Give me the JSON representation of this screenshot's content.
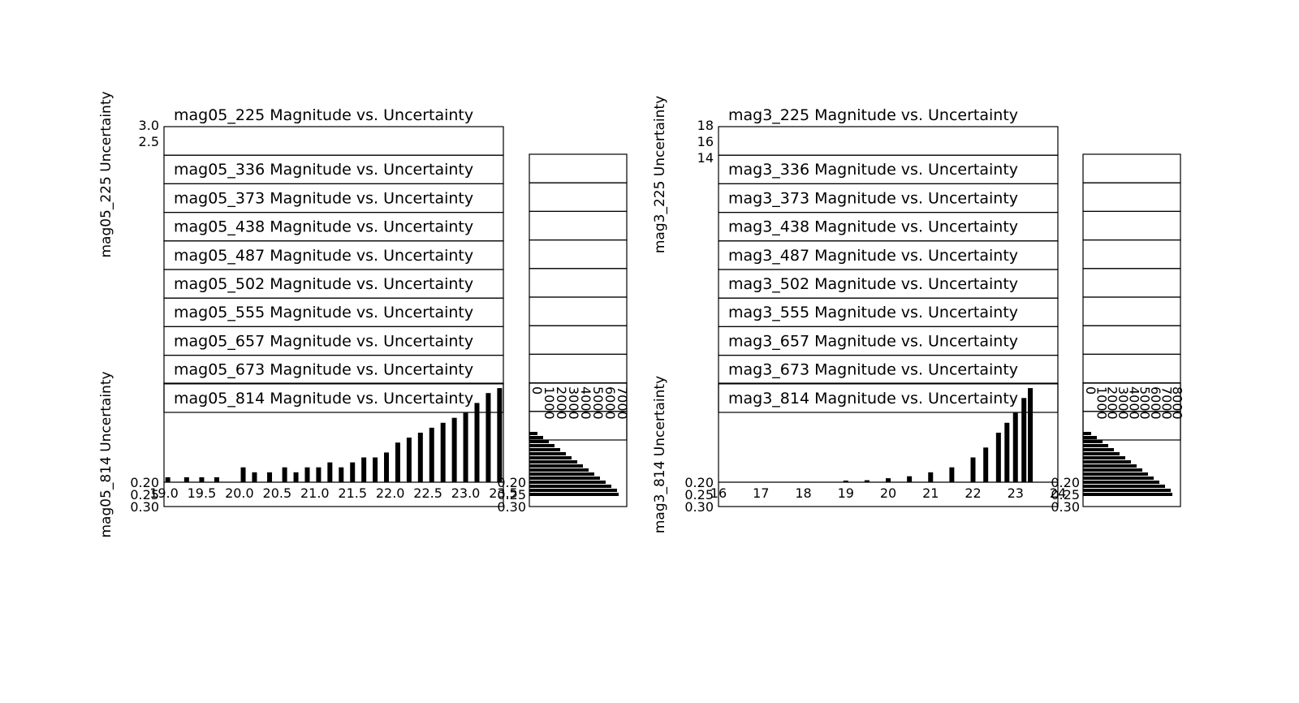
{
  "figure": {
    "left_block": {
      "title_series": [
        "mag05_225 Magnitude vs. Uncertainty",
        "mag05_336 Magnitude vs. Uncertainty",
        "mag05_373 Magnitude vs. Uncertainty",
        "mag05_438 Magnitude vs. Uncertainty",
        "mag05_487 Magnitude vs. Uncertainty",
        "mag05_502 Magnitude vs. Uncertainty",
        "mag05_555 Magnitude vs. Uncertainty",
        "mag05_657 Magnitude vs. Uncertainty",
        "mag05_673 Magnitude vs. Uncertainty",
        "mag05_814 Magnitude vs. Uncertainty"
      ],
      "ylabel_main": "mag05_814 Uncertainty",
      "ylabel_top": "mag05_225 Uncertainty",
      "xtick_labels": [
        "19.0",
        "19.5",
        "20.0",
        "20.5",
        "21.0",
        "21.5",
        "22.0",
        "22.5",
        "23.0",
        "23.5"
      ],
      "ytick_labels_bottom": [
        "0.20",
        "0.25",
        "0.30"
      ],
      "ytick_labels_top": [
        "3.0",
        "2.5"
      ],
      "hist_xtick_labels": [
        "0",
        "1000",
        "2000",
        "3000",
        "4000",
        "5000",
        "6000",
        "7000"
      ],
      "hist_ytick_labels": [
        "0.20",
        "0.25",
        "0.30"
      ]
    },
    "right_block": {
      "title_series": [
        "mag3_225 Magnitude vs. Uncertainty",
        "mag3_336 Magnitude vs. Uncertainty",
        "mag3_373 Magnitude vs. Uncertainty",
        "mag3_438 Magnitude vs. Uncertainty",
        "mag3_487 Magnitude vs. Uncertainty",
        "mag3_502 Magnitude vs. Uncertainty",
        "mag3_555 Magnitude vs. Uncertainty",
        "mag3_657 Magnitude vs. Uncertainty",
        "mag3_673 Magnitude vs. Uncertainty",
        "mag3_814 Magnitude vs. Uncertainty"
      ],
      "ylabel_main": "mag3_814 Uncertainty",
      "ylabel_top": "mag3_225 Uncertainty",
      "xtick_labels": [
        "16",
        "17",
        "18",
        "19",
        "20",
        "21",
        "22",
        "23",
        "24"
      ],
      "ytick_labels_bottom": [
        "0.20",
        "0.25",
        "0.30"
      ],
      "ytick_labels_top": [
        "18",
        "16",
        "14"
      ],
      "hist_xtick_labels": [
        "0",
        "1000",
        "2000",
        "3000",
        "4000",
        "5000",
        "6000",
        "7000",
        "8000"
      ],
      "hist_ytick_labels": [
        "0.20",
        "0.25",
        "0.30"
      ]
    }
  },
  "chart_data": [
    {
      "type": "bar",
      "title": "mag05_814 Magnitude vs. Uncertainty",
      "xlabel": "",
      "ylabel": "mag05_814 Uncertainty",
      "xlim": [
        19.0,
        23.5
      ],
      "ylim": [
        0.3,
        0.2
      ],
      "grid": false,
      "series": [
        {
          "x": [
            19.05,
            19.3,
            19.5,
            19.7,
            20.05,
            20.2,
            20.4,
            20.6,
            20.75,
            20.9,
            21.05,
            21.2,
            21.35,
            21.5,
            21.65,
            21.8,
            21.95,
            22.1,
            22.25,
            22.4,
            22.55,
            22.7,
            22.85,
            23.0,
            23.15,
            23.3,
            23.45
          ],
          "y": [
            0.205,
            0.205,
            0.205,
            0.205,
            0.215,
            0.21,
            0.21,
            0.215,
            0.21,
            0.215,
            0.215,
            0.22,
            0.215,
            0.22,
            0.225,
            0.225,
            0.23,
            0.24,
            0.245,
            0.25,
            0.255,
            0.26,
            0.265,
            0.27,
            0.28,
            0.29,
            0.295
          ]
        }
      ]
    },
    {
      "type": "bar",
      "title": "mag3_814 Magnitude vs. Uncertainty",
      "xlabel": "",
      "ylabel": "mag3_814 Uncertainty",
      "xlim": [
        16,
        24
      ],
      "ylim": [
        0.3,
        0.2
      ],
      "grid": false,
      "series": [
        {
          "x": [
            19.0,
            19.5,
            20.0,
            20.5,
            21.0,
            21.5,
            22.0,
            22.3,
            22.6,
            22.8,
            23.0,
            23.2,
            23.35
          ],
          "y": [
            0.201,
            0.202,
            0.204,
            0.206,
            0.21,
            0.215,
            0.225,
            0.235,
            0.25,
            0.26,
            0.27,
            0.285,
            0.295
          ]
        }
      ]
    }
  ]
}
